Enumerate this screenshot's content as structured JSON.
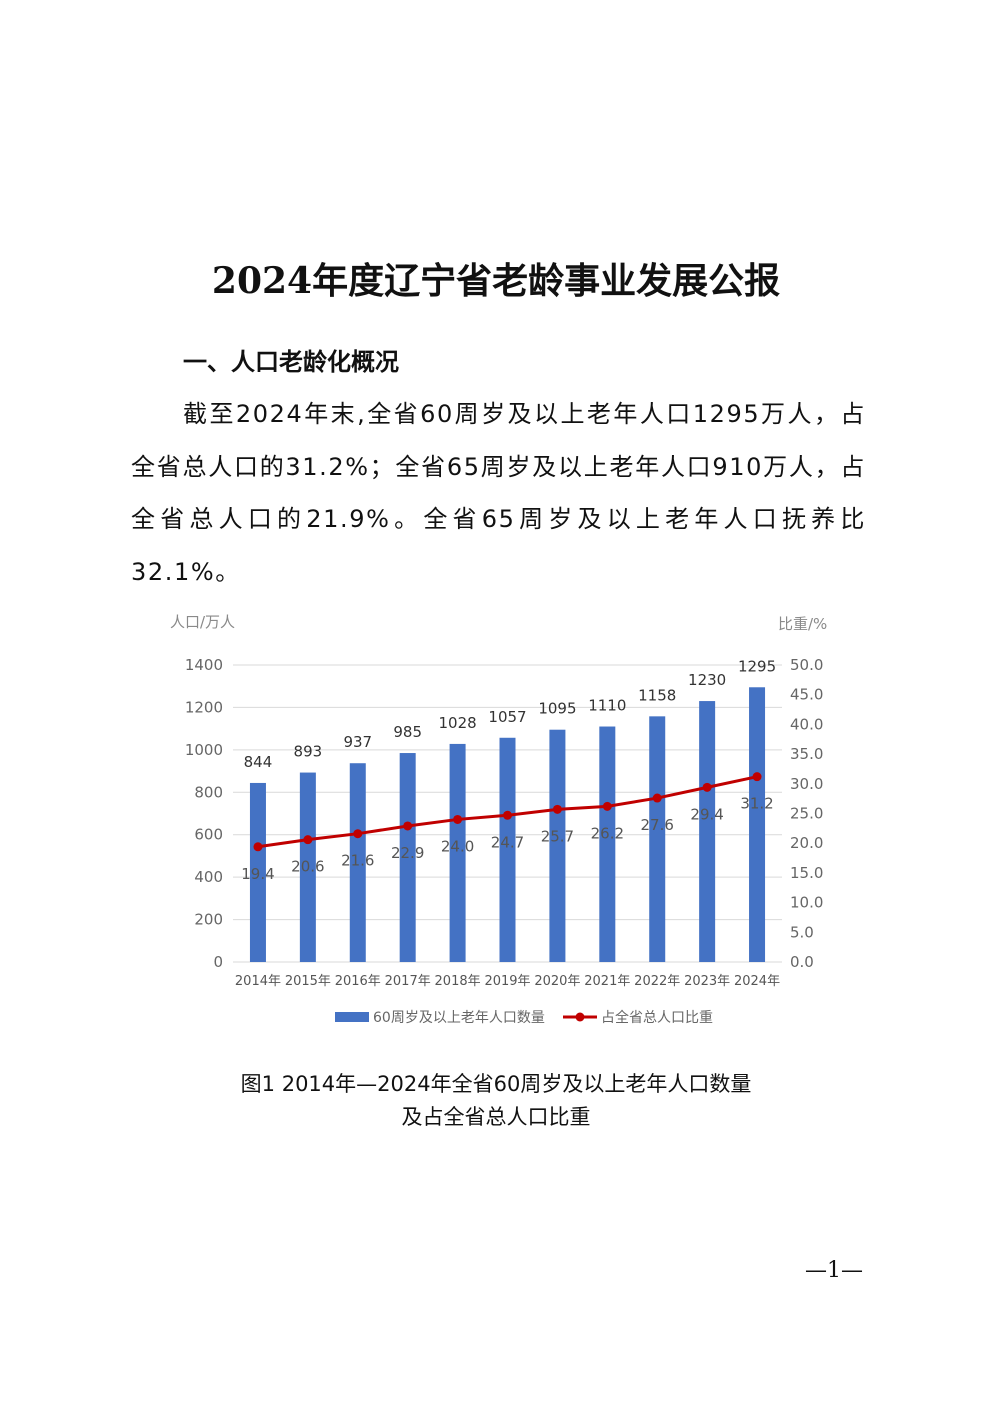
{
  "document": {
    "title": "2024年度辽宁省老龄事业发展公报",
    "section_heading": "一、人口老龄化概况",
    "paragraph": "截至2024年末,全省60周岁及以上老年人口1295万人，占全省总人口的31.2%；全省65周岁及以上老年人口910万人，占全省总人口的21.9%。全省65周岁及以上老年人口抚养比32.1%。",
    "caption_line1": "图1   2014年—2024年全省60周岁及以上老年人口数量",
    "caption_line2": "及占全省总人口比重",
    "page_number": "—1—"
  },
  "chart_data": {
    "type": "bar",
    "categories": [
      "2014年",
      "2015年",
      "2016年",
      "2017年",
      "2018年",
      "2019年",
      "2020年",
      "2021年",
      "2022年",
      "2023年",
      "2024年"
    ],
    "series": [
      {
        "name": "60周岁及以上老年人口数量",
        "type": "bar",
        "axis": "left",
        "values": [
          844,
          893,
          937,
          985,
          1028,
          1057,
          1095,
          1110,
          1158,
          1230,
          1295
        ],
        "color": "#4472C4"
      },
      {
        "name": "占全省总人口比重",
        "type": "line",
        "axis": "right",
        "values": [
          19.4,
          20.6,
          21.6,
          22.9,
          24.0,
          24.7,
          25.7,
          26.2,
          27.6,
          29.4,
          31.2
        ],
        "labels": [
          "19.4",
          "20.6",
          "21.6",
          "22.9",
          "24.0",
          "24.7",
          "25.7",
          "26.2",
          "27.6",
          "29.4",
          "31.2"
        ],
        "color": "#C00000"
      }
    ],
    "ylabel_left": "人口/万人",
    "ylabel_right": "比重/%",
    "ylim_left": [
      0,
      1400
    ],
    "yticks_left": [
      "0",
      "200",
      "400",
      "600",
      "800",
      "1000",
      "1200",
      "1400"
    ],
    "ylim_right": [
      0,
      50
    ],
    "yticks_right": [
      "0.0",
      "5.0",
      "10.0",
      "15.0",
      "20.0",
      "25.0",
      "30.0",
      "35.0",
      "40.0",
      "45.0",
      "50.0"
    ],
    "grid": true,
    "legend_position": "bottom"
  }
}
